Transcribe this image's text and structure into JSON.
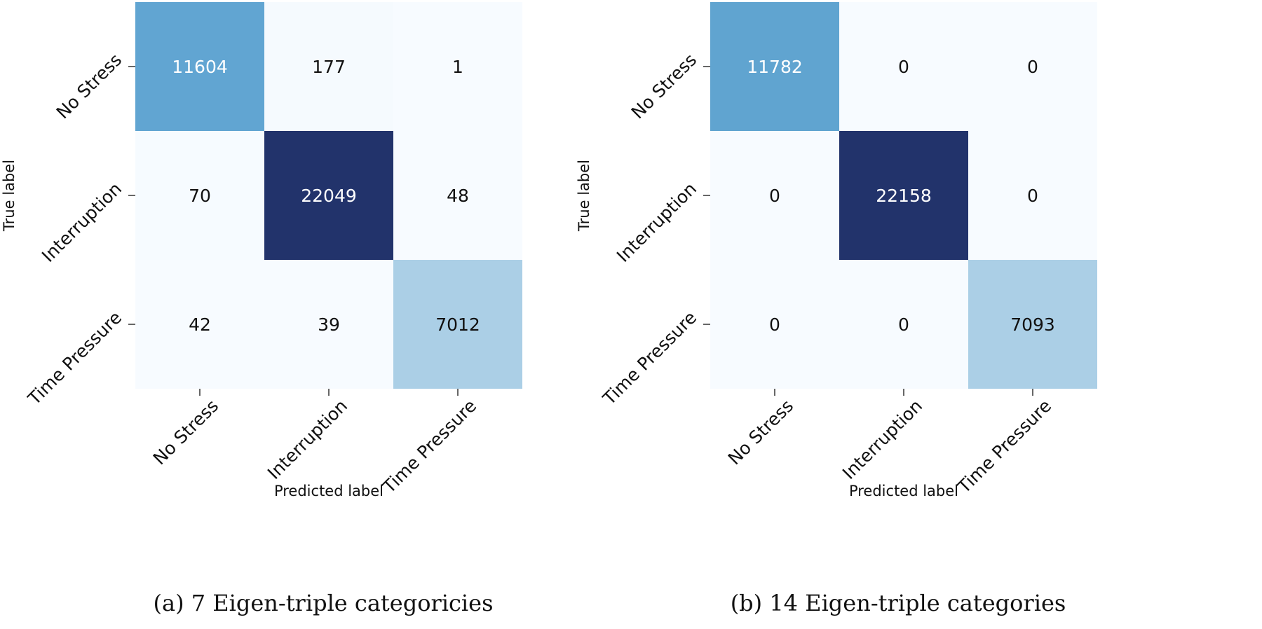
{
  "chart_data": [
    {
      "type": "heatmap",
      "caption": "(a) 7 Eigen-triple categoricies",
      "xlabel": "Predicted label",
      "ylabel": "True label",
      "x_categories": [
        "No Stress",
        "Interruption",
        "Time Pressure"
      ],
      "y_categories": [
        "No Stress",
        "Interruption",
        "Time Pressure"
      ],
      "matrix": [
        [
          11604,
          177,
          1
        ],
        [
          70,
          22049,
          48
        ],
        [
          42,
          39,
          7012
        ]
      ],
      "colormap": "Blues",
      "colorbar": false
    },
    {
      "type": "heatmap",
      "caption": "(b) 14 Eigen-triple categories",
      "xlabel": "Predicted label",
      "ylabel": "True label",
      "x_categories": [
        "No Stress",
        "Interruption",
        "Time Pressure"
      ],
      "y_categories": [
        "No Stress",
        "Interruption",
        "Time Pressure"
      ],
      "matrix": [
        [
          11782,
          0,
          0
        ],
        [
          0,
          22158,
          0
        ],
        [
          0,
          0,
          7093
        ]
      ],
      "colormap": "Blues",
      "colorbar": false
    }
  ],
  "colors": {
    "low": "#f7fbff",
    "mid_light": "#b2d3e8",
    "mid": "#62a7d3",
    "high": "#22336b",
    "text_dark": "#111111",
    "text_light": "#ffffff"
  }
}
